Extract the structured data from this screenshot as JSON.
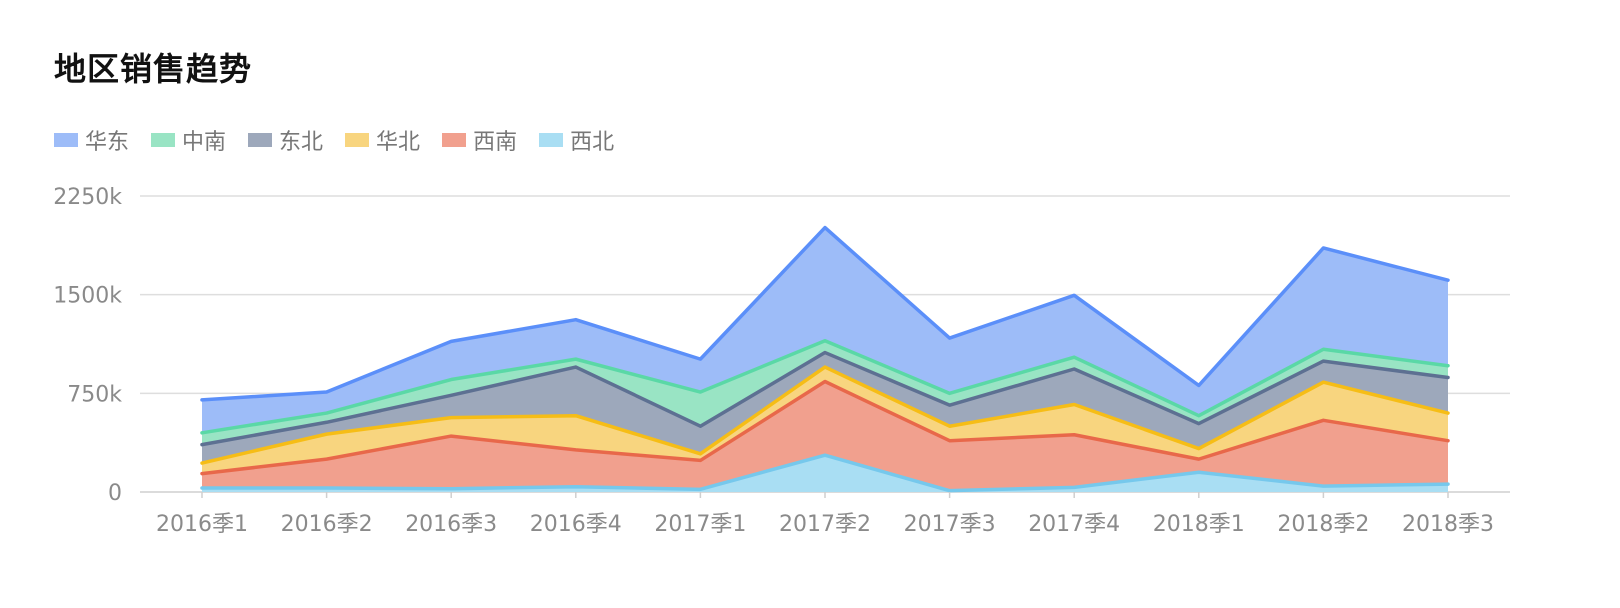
{
  "chart_data": {
    "type": "area",
    "stacked": true,
    "title": "地区销售趋势",
    "xlabel": "",
    "ylabel": "",
    "ylim": [
      0,
      2250
    ],
    "y_tick_values": [
      0,
      750,
      1500,
      2250
    ],
    "y_tick_labels": [
      "0",
      "750k",
      "1500k",
      "2250k"
    ],
    "grid": true,
    "legend_position": "top-left",
    "categories": [
      "2016季1",
      "2016季2",
      "2016季3",
      "2016季4",
      "2017季1",
      "2017季2",
      "2017季3",
      "2017季4",
      "2018季1",
      "2018季2",
      "2018季3"
    ],
    "series": [
      {
        "name": "西北",
        "color": "#76c8ec",
        "fill": "#a9def3",
        "values": [
          30,
          30,
          25,
          40,
          20,
          280,
          10,
          35,
          150,
          45,
          60
        ]
      },
      {
        "name": "西南",
        "color": "#e8684a",
        "fill": "#f1a08e",
        "values": [
          110,
          220,
          400,
          280,
          220,
          560,
          380,
          400,
          100,
          500,
          330
        ]
      },
      {
        "name": "华北",
        "color": "#f6bd16",
        "fill": "#f8d57f",
        "values": [
          80,
          190,
          140,
          260,
          50,
          110,
          110,
          230,
          80,
          290,
          210
        ]
      },
      {
        "name": "东北",
        "color": "#5d7092",
        "fill": "#9da8bb",
        "values": [
          140,
          90,
          170,
          370,
          210,
          110,
          160,
          270,
          190,
          160,
          270
        ]
      },
      {
        "name": "中南",
        "color": "#5ad8a6",
        "fill": "#99e4c4",
        "values": [
          90,
          70,
          120,
          60,
          260,
          90,
          90,
          90,
          60,
          90,
          90
        ]
      },
      {
        "name": "华东",
        "color": "#5b8ff9",
        "fill": "#9dbcf8",
        "values": [
          250,
          160,
          290,
          300,
          250,
          860,
          420,
          470,
          230,
          770,
          650
        ]
      }
    ]
  },
  "legend": {
    "items": [
      {
        "label": "华东",
        "color": "#9dbcf8"
      },
      {
        "label": "中南",
        "color": "#99e4c4"
      },
      {
        "label": "东北",
        "color": "#9da8bb"
      },
      {
        "label": "华北",
        "color": "#f8d57f"
      },
      {
        "label": "西南",
        "color": "#f1a08e"
      },
      {
        "label": "西北",
        "color": "#a9def3"
      }
    ]
  }
}
